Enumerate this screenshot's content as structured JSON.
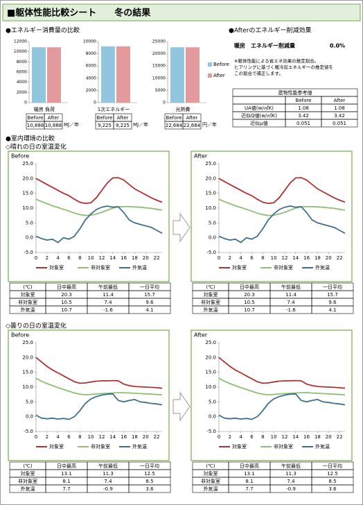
{
  "header": {
    "title": "■躯体性能比較シート　　冬の結果"
  },
  "energy": {
    "title": "●エネルギー消費量の比較",
    "series_names": [
      "Before",
      "After"
    ],
    "colors": [
      "#92c5de",
      "#e39a9d"
    ],
    "charts": [
      {
        "type": "bar",
        "label": "暖房 負荷",
        "values": [
          10888,
          10888
        ],
        "value_labels": [
          "10,888",
          "10,888"
        ],
        "unit": "MJ／年",
        "ylim": [
          0,
          12000
        ],
        "yticks": [
          0,
          2000,
          4000,
          6000,
          8000,
          10000,
          12000
        ]
      },
      {
        "type": "bar",
        "label": "1次エネルギー",
        "values": [
          9225,
          9225
        ],
        "value_labels": [
          "9,225",
          "9,225"
        ],
        "unit": "MJ／年",
        "ylim": [
          0,
          10000
        ],
        "yticks": [
          0,
          2000,
          4000,
          6000,
          8000,
          10000
        ]
      },
      {
        "type": "bar",
        "label": "光熱費",
        "values": [
          22684,
          22684
        ],
        "value_labels": [
          "22,684",
          "22,684"
        ],
        "unit": "円／年",
        "ylim": [
          0,
          25000
        ],
        "yticks": [
          0,
          5000,
          10000,
          15000,
          20000,
          25000
        ]
      }
    ]
  },
  "reduction": {
    "title": "●Afterのエネルギー削減効果",
    "label": "暖房　エネルギー削減量",
    "value": "0.0%",
    "notes": [
      "※躯体性能による省エネ効果の推定割合。",
      "ヒアリングに基づく暖冷房エネルギーの推定値を",
      "この割合で補正します。"
    ]
  },
  "building": {
    "title": "建物性能参考値",
    "columns": [
      "Before",
      "After"
    ],
    "rows": [
      [
        "UA値(w/㎡K)",
        "1.08",
        "1.08"
      ],
      [
        "近似Q値(w/㎡K)",
        "3.42",
        "3.42"
      ],
      [
        "近似μ値",
        "0.051",
        "0.051"
      ]
    ]
  },
  "indoor": {
    "title": "●室内環境の比較",
    "days": [
      {
        "title": "◇晴れの日の室温変化",
        "panels": [
          {
            "type": "line",
            "label": "Before",
            "x": [
              0,
              1,
              2,
              3,
              4,
              5,
              6,
              7,
              8,
              9,
              10,
              11,
              12,
              13,
              14,
              15,
              16,
              17,
              18,
              19,
              20,
              21,
              22,
              23
            ],
            "xlim": [
              0,
              23
            ],
            "xticks": [
              0,
              2,
              4,
              6,
              8,
              10,
              12,
              14,
              16,
              18,
              20,
              22
            ],
            "ylim": [
              -5,
              25
            ],
            "yticks": [
              {
                "value": -5,
                "label": "-5.0"
              },
              {
                "value": 0,
                "label": "0.0"
              },
              {
                "value": 5,
                "label": "5.0"
              },
              {
                "value": 10,
                "label": "10.0"
              },
              {
                "value": 15,
                "label": "15.0"
              },
              {
                "value": 20,
                "label": "20.0"
              },
              {
                "value": 25,
                "label": "25.0"
              }
            ],
            "series": [
              {
                "name": "対象室",
                "color": "#b22f2f",
                "values": [
                  20,
                  19,
                  18,
                  17,
                  16,
                  15,
                  14.2,
                  13,
                  12,
                  11.6,
                  11.8,
                  13.5,
                  16,
                  18.5,
                  20.2,
                  20.3,
                  19.5,
                  18,
                  16.5,
                  15.5,
                  14.5,
                  13.5,
                  12.7,
                  12
                ]
              },
              {
                "name": "非対象室",
                "color": "#8cbf6f",
                "values": [
                  13,
                  12.2,
                  11.5,
                  10.8,
                  10.2,
                  9.6,
                  9,
                  8.3,
                  7.8,
                  7.5,
                  7.6,
                  8,
                  8.6,
                  9.3,
                  10,
                  10.4,
                  10.5,
                  10.5,
                  10.4,
                  10.3,
                  10.1,
                  9.9,
                  9.6,
                  9.3
                ]
              },
              {
                "name": "外気温",
                "color": "#3b6e8f",
                "values": [
                  0.5,
                  -0.3,
                  -0.8,
                  -0.5,
                  -1.6,
                  0,
                  -0.5,
                  0.5,
                  3,
                  6,
                  8,
                  9.5,
                  10.3,
                  10.7,
                  10.3,
                  10.5,
                  8.5,
                  6,
                  5,
                  4.5,
                  4,
                  3.5,
                  2.5,
                  1.5
                ]
              }
            ],
            "table": {
              "columns": [
                "(℃)",
                "日中最高",
                "午前最低",
                "一日平均"
              ],
              "rows": [
                [
                  "対象室",
                  "20.3",
                  "11.4",
                  "15.7"
                ],
                [
                  "非対象室",
                  "10.5",
                  "7.4",
                  "9.6"
                ],
                [
                  "外気温",
                  "10.7",
                  "-1.6",
                  "4.1"
                ]
              ]
            }
          },
          {
            "type": "line",
            "label": "After",
            "x": [
              0,
              1,
              2,
              3,
              4,
              5,
              6,
              7,
              8,
              9,
              10,
              11,
              12,
              13,
              14,
              15,
              16,
              17,
              18,
              19,
              20,
              21,
              22,
              23
            ],
            "xlim": [
              0,
              23
            ],
            "xticks": [
              0,
              2,
              4,
              6,
              8,
              10,
              12,
              14,
              16,
              18,
              20,
              22
            ],
            "ylim": [
              -5,
              25
            ],
            "yticks": [
              {
                "value": -5,
                "label": "-5.0"
              },
              {
                "value": 0,
                "label": "0.0"
              },
              {
                "value": 5,
                "label": "5.0"
              },
              {
                "value": 10,
                "label": "10.0"
              },
              {
                "value": 15,
                "label": "15.0"
              },
              {
                "value": 20,
                "label": "20.0"
              },
              {
                "value": 25,
                "label": "25.0"
              }
            ],
            "series": [
              {
                "name": "対象室",
                "color": "#b22f2f",
                "values": [
                  20,
                  19,
                  18,
                  17,
                  16,
                  15,
                  14.2,
                  13,
                  12,
                  11.6,
                  11.8,
                  13.5,
                  16,
                  18.5,
                  20.2,
                  20.3,
                  19.5,
                  18,
                  16.5,
                  15.5,
                  14.5,
                  13.5,
                  12.7,
                  12
                ]
              },
              {
                "name": "非対象室",
                "color": "#8cbf6f",
                "values": [
                  13,
                  12.2,
                  11.5,
                  10.8,
                  10.2,
                  9.6,
                  9,
                  8.3,
                  7.8,
                  7.5,
                  7.6,
                  8,
                  8.6,
                  9.3,
                  10,
                  10.4,
                  10.5,
                  10.5,
                  10.4,
                  10.3,
                  10.1,
                  9.9,
                  9.6,
                  9.3
                ]
              },
              {
                "name": "外気温",
                "color": "#3b6e8f",
                "values": [
                  0.5,
                  -0.3,
                  -0.8,
                  -0.5,
                  -1.6,
                  0,
                  -0.5,
                  0.5,
                  3,
                  6,
                  8,
                  9.5,
                  10.3,
                  10.7,
                  10.3,
                  10.5,
                  8.5,
                  6,
                  5,
                  4.5,
                  4,
                  3.5,
                  2.5,
                  1.5
                ]
              }
            ],
            "table": {
              "columns": [
                "(℃)",
                "日中最高",
                "午前最低",
                "一日平均"
              ],
              "rows": [
                [
                  "対象室",
                  "20.3",
                  "11.4",
                  "15.7"
                ],
                [
                  "非対象室",
                  "10.5",
                  "7.4",
                  "9.6"
                ],
                [
                  "外気温",
                  "10.7",
                  "-1.6",
                  "4.1"
                ]
              ]
            }
          }
        ]
      },
      {
        "title": "◇曇りの日の室温変化",
        "panels": [
          {
            "type": "line",
            "label": "Before",
            "x": [
              0,
              1,
              2,
              3,
              4,
              5,
              6,
              7,
              8,
              9,
              10,
              11,
              12,
              13,
              14,
              15,
              16,
              17,
              18,
              19,
              20,
              21,
              22,
              23
            ],
            "xlim": [
              0,
              23
            ],
            "xticks": [
              0,
              2,
              4,
              6,
              8,
              10,
              12,
              14,
              16,
              18,
              20,
              22
            ],
            "ylim": [
              -5,
              25
            ],
            "yticks": [
              {
                "value": -5,
                "label": "-5.0"
              },
              {
                "value": 0,
                "label": "0.0"
              },
              {
                "value": 5,
                "label": "5.0"
              },
              {
                "value": 10,
                "label": "10.0"
              },
              {
                "value": 15,
                "label": "15.0"
              },
              {
                "value": 20,
                "label": "20.0"
              },
              {
                "value": 25,
                "label": "25.0"
              }
            ],
            "series": [
              {
                "name": "対象室",
                "color": "#b22f2f",
                "values": [
                  20,
                  18.5,
                  17,
                  15.8,
                  14.8,
                  13.8,
                  12.8,
                  11.8,
                  11.3,
                  11.4,
                  11.7,
                  12,
                  12.1,
                  12.1,
                  12.2,
                  12.1,
                  11,
                  10.5,
                  10.2,
                  10.1,
                  10,
                  9.9,
                  9.8,
                  9.6
                ]
              },
              {
                "name": "非対象室",
                "color": "#8cbf6f",
                "values": [
                  13,
                  12,
                  11.2,
                  10.5,
                  9.8,
                  9.2,
                  8.6,
                  8,
                  7.6,
                  7.4,
                  7.5,
                  7.7,
                  7.8,
                  7.9,
                  8,
                  8.1,
                  8.1,
                  8,
                  7.9,
                  7.8,
                  7.7,
                  7.6,
                  7.5,
                  7.4
                ]
              },
              {
                "name": "外気温",
                "color": "#3b6e8f",
                "values": [
                  0.5,
                  -0.5,
                  -0.7,
                  -0.5,
                  -0.8,
                  -0.6,
                  -0.9,
                  0,
                  2,
                  4.5,
                  6,
                  6.8,
                  7.3,
                  7.6,
                  7.7,
                  5.5,
                  5,
                  5.5,
                  5.8,
                  5,
                  4.8,
                  4.5,
                  4.3,
                  4
                ]
              }
            ],
            "table": {
              "columns": [
                "(℃)",
                "日中最高",
                "午前最低",
                "一日平均"
              ],
              "rows": [
                [
                  "対象室",
                  "13.1",
                  "11.3",
                  "12.5"
                ],
                [
                  "非対象室",
                  "8.1",
                  "7.4",
                  "8.5"
                ],
                [
                  "外気温",
                  "7.7",
                  "-0.9",
                  "3.6"
                ]
              ]
            }
          },
          {
            "type": "line",
            "label": "After",
            "x": [
              0,
              1,
              2,
              3,
              4,
              5,
              6,
              7,
              8,
              9,
              10,
              11,
              12,
              13,
              14,
              15,
              16,
              17,
              18,
              19,
              20,
              21,
              22,
              23
            ],
            "xlim": [
              0,
              23
            ],
            "xticks": [
              0,
              2,
              4,
              6,
              8,
              10,
              12,
              14,
              16,
              18,
              20,
              22
            ],
            "ylim": [
              -5,
              25
            ],
            "yticks": [
              {
                "value": -5,
                "label": "-5.0"
              },
              {
                "value": 0,
                "label": "0.0"
              },
              {
                "value": 5,
                "label": "5.0"
              },
              {
                "value": 10,
                "label": "10.0"
              },
              {
                "value": 15,
                "label": "15.0"
              },
              {
                "value": 20,
                "label": "20.0"
              },
              {
                "value": 25,
                "label": "25.0"
              }
            ],
            "series": [
              {
                "name": "対象室",
                "color": "#b22f2f",
                "values": [
                  20,
                  18.5,
                  17,
                  15.8,
                  14.8,
                  13.8,
                  12.8,
                  11.8,
                  11.3,
                  11.4,
                  11.7,
                  12,
                  12.1,
                  12.1,
                  12.2,
                  12.1,
                  11,
                  10.5,
                  10.2,
                  10.1,
                  10,
                  9.9,
                  9.8,
                  9.6
                ]
              },
              {
                "name": "非対象室",
                "color": "#8cbf6f",
                "values": [
                  13,
                  12,
                  11.2,
                  10.5,
                  9.8,
                  9.2,
                  8.6,
                  8,
                  7.6,
                  7.4,
                  7.5,
                  7.7,
                  7.8,
                  7.9,
                  8,
                  8.1,
                  8.1,
                  8,
                  7.9,
                  7.8,
                  7.7,
                  7.6,
                  7.5,
                  7.4
                ]
              },
              {
                "name": "外気温",
                "color": "#3b6e8f",
                "values": [
                  0.5,
                  -0.5,
                  -0.7,
                  -0.5,
                  -0.8,
                  -0.6,
                  -0.9,
                  0,
                  2,
                  4.5,
                  6,
                  6.8,
                  7.3,
                  7.6,
                  7.7,
                  5.5,
                  5,
                  5.5,
                  5.8,
                  5,
                  4.8,
                  4.5,
                  4.3,
                  4
                ]
              }
            ],
            "table": {
              "columns": [
                "(℃)",
                "日中最高",
                "午前最低",
                "一日平均"
              ],
              "rows": [
                [
                  "対象室",
                  "13.1",
                  "11.3",
                  "12.5"
                ],
                [
                  "非対象室",
                  "8.1",
                  "7.4",
                  "8.5"
                ],
                [
                  "外気温",
                  "7.7",
                  "-0.9",
                  "3.6"
                ]
              ]
            }
          }
        ]
      }
    ]
  }
}
